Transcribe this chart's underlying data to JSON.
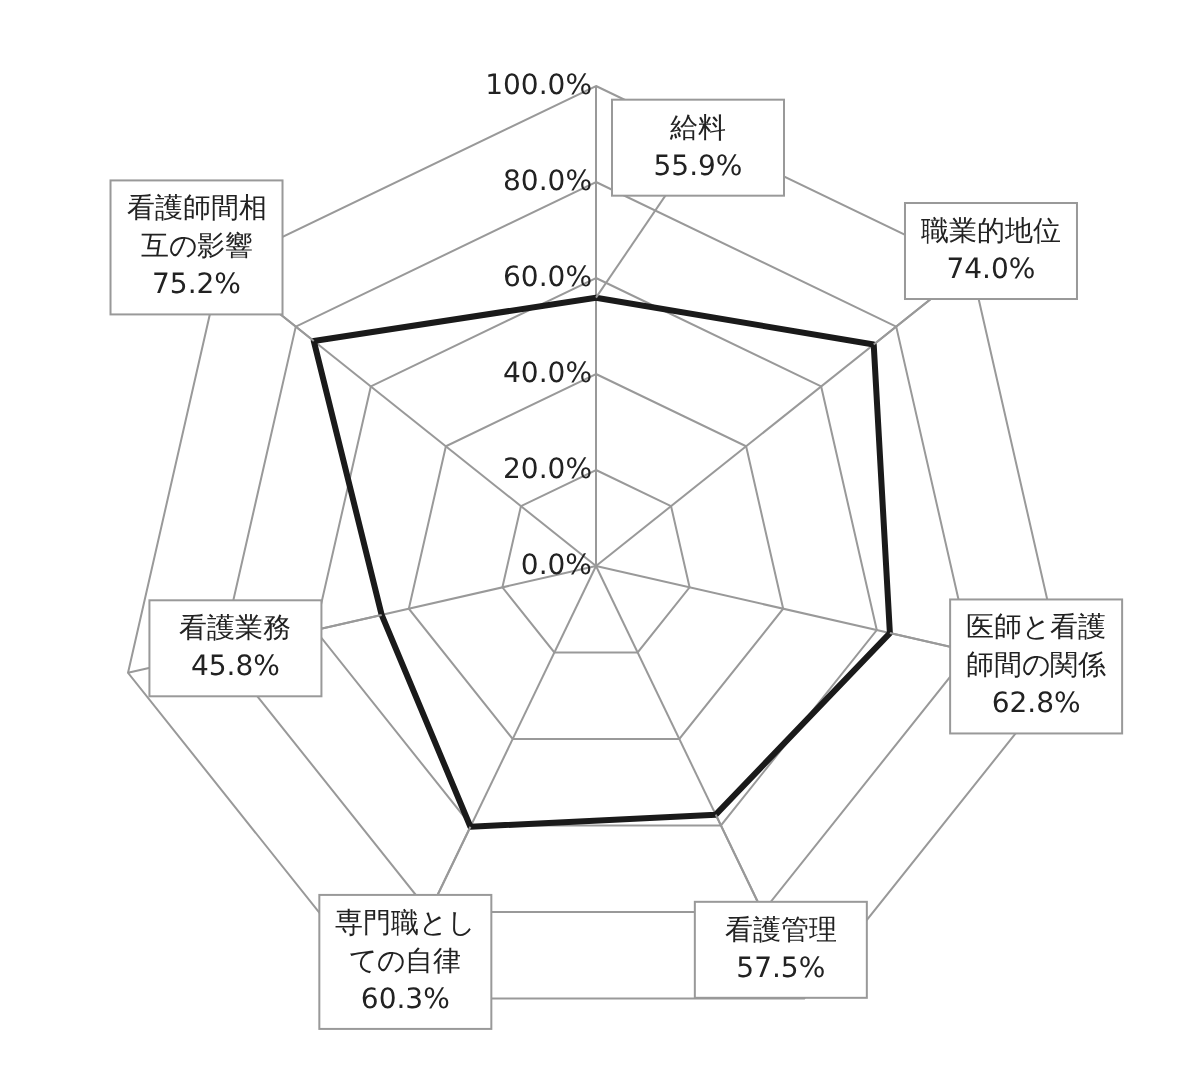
{
  "chart_data": {
    "type": "radar",
    "categories": [
      "給料",
      "職業的地位",
      "医師と看護師間の関係",
      "看護管理",
      "専門職としての自律",
      "看護業務",
      "看護師間相互の影響"
    ],
    "series": [
      {
        "color": "#1a1a1a",
        "values": [
          55.9,
          74.0,
          62.8,
          57.5,
          60.3,
          45.8,
          75.2
        ],
        "value_labels": [
          "55.9%",
          "74.0%",
          "62.8%",
          "57.5%",
          "60.3%",
          "45.8%",
          "75.2%"
        ]
      }
    ],
    "ylim": [
      0,
      100
    ],
    "yticks": [
      {
        "value": 0,
        "label": "0.0%"
      },
      {
        "value": 20,
        "label": "20.0%"
      },
      {
        "value": 40,
        "label": "40.0%"
      },
      {
        "value": 60,
        "label": "60.0%"
      },
      {
        "value": 80,
        "label": "80.0%"
      },
      {
        "value": 100,
        "label": "100.0%"
      }
    ],
    "grid": true
  }
}
